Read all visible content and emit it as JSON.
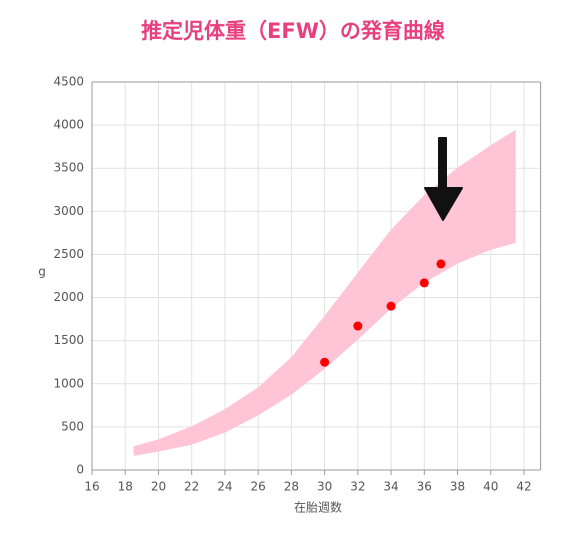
{
  "chart_data": {
    "type": "scatter",
    "title": "推定児体重（EFW）の発育曲線",
    "x_label": "在胎週数",
    "y_label": "g",
    "xlim": [
      16,
      43
    ],
    "xticks": [
      16,
      18,
      20,
      22,
      24,
      26,
      28,
      30,
      32,
      34,
      36,
      38,
      40,
      42
    ],
    "ylim": [
      0,
      4500
    ],
    "yticks": [
      0,
      500,
      1000,
      1500,
      2000,
      2500,
      3000,
      3500,
      4000,
      4500
    ],
    "grid": true,
    "band": {
      "color": "#ffc4d6",
      "x": [
        18.5,
        20,
        22,
        24,
        26,
        28,
        30,
        32,
        34,
        36,
        38,
        40,
        41.5
      ],
      "upper": [
        270,
        350,
        500,
        700,
        950,
        1300,
        1780,
        2280,
        2780,
        3180,
        3500,
        3760,
        3940
      ],
      "lower": [
        170,
        220,
        300,
        440,
        640,
        880,
        1180,
        1520,
        1880,
        2180,
        2400,
        2560,
        2640
      ]
    },
    "points": {
      "color": "#ff0000",
      "x": [
        30,
        32,
        34,
        36,
        37
      ],
      "values": [
        1250,
        1670,
        1900,
        2170,
        2390
      ]
    }
  }
}
